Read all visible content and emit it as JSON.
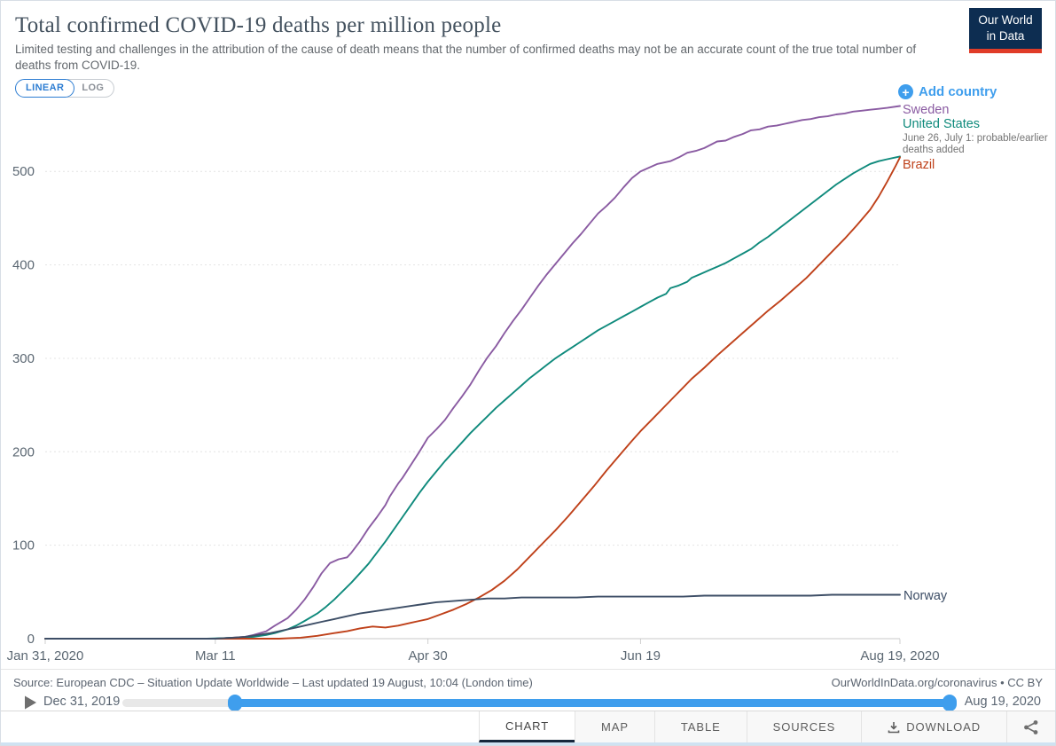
{
  "header": {
    "title": "Total confirmed COVID-19 deaths per million people",
    "subtitle": "Limited testing and challenges in the attribution of the cause of death means that the number of confirmed deaths may not be an accurate count of the true total number of deaths from COVID-19.",
    "logo_line1": "Our World",
    "logo_line2": "in Data",
    "scale_toggle": {
      "linear_label": "LINEAR",
      "log_label": "LOG",
      "active": "LINEAR"
    }
  },
  "legend": {
    "add_country_label": "Add country"
  },
  "chart_data": {
    "type": "line",
    "title": "Total confirmed COVID-19 deaths per million people",
    "x_axis": {
      "tick_days": [
        0,
        40,
        90,
        140,
        201
      ],
      "tick_labels": [
        "Jan 31, 2020",
        "Mar 11",
        "Apr 30",
        "Jun 19",
        "Aug 19, 2020"
      ],
      "start_date": "Jan 31, 2020",
      "end_date": "Aug 19, 2020"
    },
    "y_axis": {
      "ticks": [
        0,
        100,
        200,
        300,
        400,
        500
      ],
      "max_value": 570,
      "gridlines": "dashed"
    },
    "legend_position": "right",
    "series": [
      {
        "name": "Sweden",
        "color": "#8a5ba2",
        "points": [
          [
            0,
            0
          ],
          [
            30,
            0
          ],
          [
            40,
            0
          ],
          [
            44,
            1
          ],
          [
            47,
            2
          ],
          [
            49,
            4
          ],
          [
            52,
            8
          ],
          [
            54,
            14
          ],
          [
            57,
            22
          ],
          [
            59,
            31
          ],
          [
            61,
            42
          ],
          [
            63,
            55
          ],
          [
            65,
            70
          ],
          [
            67,
            81
          ],
          [
            69,
            85
          ],
          [
            71,
            87
          ],
          [
            72,
            92
          ],
          [
            74,
            104
          ],
          [
            76,
            118
          ],
          [
            78,
            130
          ],
          [
            80,
            143
          ],
          [
            81,
            152
          ],
          [
            83,
            166
          ],
          [
            84,
            172
          ],
          [
            86,
            186
          ],
          [
            88,
            200
          ],
          [
            90,
            215
          ],
          [
            92,
            224
          ],
          [
            94,
            234
          ],
          [
            96,
            247
          ],
          [
            98,
            259
          ],
          [
            100,
            272
          ],
          [
            102,
            287
          ],
          [
            104,
            301
          ],
          [
            106,
            313
          ],
          [
            108,
            327
          ],
          [
            110,
            340
          ],
          [
            112,
            352
          ],
          [
            114,
            365
          ],
          [
            116,
            378
          ],
          [
            118,
            390
          ],
          [
            120,
            401
          ],
          [
            122,
            412
          ],
          [
            124,
            423
          ],
          [
            126,
            433
          ],
          [
            128,
            444
          ],
          [
            130,
            455
          ],
          [
            132,
            463
          ],
          [
            134,
            472
          ],
          [
            136,
            483
          ],
          [
            138,
            493
          ],
          [
            140,
            500
          ],
          [
            142,
            504
          ],
          [
            144,
            508
          ],
          [
            147,
            511
          ],
          [
            149,
            515
          ],
          [
            151,
            520
          ],
          [
            153,
            522
          ],
          [
            155,
            525
          ],
          [
            158,
            532
          ],
          [
            160,
            533
          ],
          [
            162,
            537
          ],
          [
            164,
            540
          ],
          [
            166,
            544
          ],
          [
            168,
            545
          ],
          [
            170,
            548
          ],
          [
            172,
            549
          ],
          [
            174,
            551
          ],
          [
            176,
            553
          ],
          [
            178,
            555
          ],
          [
            180,
            556
          ],
          [
            182,
            558
          ],
          [
            184,
            559
          ],
          [
            186,
            561
          ],
          [
            188,
            562
          ],
          [
            190,
            564
          ],
          [
            192,
            565
          ],
          [
            194,
            566
          ],
          [
            196,
            567
          ],
          [
            198,
            568
          ],
          [
            201,
            570
          ]
        ]
      },
      {
        "name": "United States",
        "color": "#0f8a7c",
        "note": "June 26, July 1: probable/earlier deaths added",
        "points": [
          [
            0,
            0
          ],
          [
            38,
            0
          ],
          [
            45,
            1
          ],
          [
            49,
            2
          ],
          [
            52,
            4
          ],
          [
            54,
            6
          ],
          [
            57,
            10
          ],
          [
            59,
            14
          ],
          [
            61,
            19
          ],
          [
            64,
            27
          ],
          [
            66,
            34
          ],
          [
            68,
            42
          ],
          [
            70,
            51
          ],
          [
            72,
            60
          ],
          [
            74,
            70
          ],
          [
            76,
            80
          ],
          [
            78,
            92
          ],
          [
            80,
            104
          ],
          [
            82,
            117
          ],
          [
            84,
            130
          ],
          [
            86,
            143
          ],
          [
            88,
            156
          ],
          [
            90,
            168
          ],
          [
            92,
            179
          ],
          [
            94,
            190
          ],
          [
            96,
            200
          ],
          [
            98,
            210
          ],
          [
            100,
            220
          ],
          [
            102,
            229
          ],
          [
            104,
            238
          ],
          [
            106,
            247
          ],
          [
            108,
            255
          ],
          [
            110,
            263
          ],
          [
            112,
            271
          ],
          [
            114,
            279
          ],
          [
            116,
            286
          ],
          [
            118,
            293
          ],
          [
            120,
            300
          ],
          [
            122,
            306
          ],
          [
            124,
            312
          ],
          [
            126,
            318
          ],
          [
            128,
            324
          ],
          [
            130,
            330
          ],
          [
            132,
            335
          ],
          [
            134,
            340
          ],
          [
            136,
            345
          ],
          [
            138,
            350
          ],
          [
            140,
            355
          ],
          [
            142,
            360
          ],
          [
            144,
            365
          ],
          [
            146,
            369
          ],
          [
            147,
            375
          ],
          [
            149,
            378
          ],
          [
            151,
            382
          ],
          [
            152,
            386
          ],
          [
            154,
            390
          ],
          [
            156,
            394
          ],
          [
            158,
            398
          ],
          [
            160,
            402
          ],
          [
            162,
            407
          ],
          [
            164,
            412
          ],
          [
            166,
            417
          ],
          [
            168,
            424
          ],
          [
            170,
            430
          ],
          [
            172,
            437
          ],
          [
            174,
            444
          ],
          [
            176,
            451
          ],
          [
            178,
            458
          ],
          [
            180,
            465
          ],
          [
            182,
            472
          ],
          [
            184,
            479
          ],
          [
            186,
            486
          ],
          [
            188,
            492
          ],
          [
            190,
            498
          ],
          [
            192,
            503
          ],
          [
            194,
            508
          ],
          [
            196,
            511
          ],
          [
            198,
            513
          ],
          [
            200,
            515
          ],
          [
            201,
            516
          ]
        ]
      },
      {
        "name": "Brazil",
        "color": "#bf411a",
        "points": [
          [
            0,
            0
          ],
          [
            55,
            0
          ],
          [
            60,
            1
          ],
          [
            64,
            3
          ],
          [
            68,
            6
          ],
          [
            71,
            8
          ],
          [
            74,
            11
          ],
          [
            77,
            13
          ],
          [
            80,
            12
          ],
          [
            83,
            14
          ],
          [
            86,
            17
          ],
          [
            88,
            19
          ],
          [
            90,
            21
          ],
          [
            93,
            26
          ],
          [
            96,
            31
          ],
          [
            99,
            37
          ],
          [
            102,
            44
          ],
          [
            105,
            52
          ],
          [
            108,
            62
          ],
          [
            111,
            74
          ],
          [
            114,
            88
          ],
          [
            117,
            102
          ],
          [
            120,
            116
          ],
          [
            123,
            131
          ],
          [
            126,
            147
          ],
          [
            129,
            163
          ],
          [
            132,
            180
          ],
          [
            135,
            196
          ],
          [
            138,
            212
          ],
          [
            140,
            222
          ],
          [
            143,
            236
          ],
          [
            146,
            250
          ],
          [
            149,
            264
          ],
          [
            152,
            278
          ],
          [
            155,
            290
          ],
          [
            158,
            303
          ],
          [
            161,
            315
          ],
          [
            164,
            327
          ],
          [
            167,
            339
          ],
          [
            170,
            351
          ],
          [
            173,
            362
          ],
          [
            176,
            374
          ],
          [
            179,
            386
          ],
          [
            182,
            400
          ],
          [
            185,
            414
          ],
          [
            188,
            428
          ],
          [
            191,
            443
          ],
          [
            194,
            459
          ],
          [
            196,
            473
          ],
          [
            198,
            489
          ],
          [
            200,
            506
          ],
          [
            201,
            515
          ]
        ]
      },
      {
        "name": "Norway",
        "color": "#3d4e66",
        "points": [
          [
            0,
            0
          ],
          [
            40,
            0
          ],
          [
            44,
            1
          ],
          [
            47,
            2
          ],
          [
            50,
            4
          ],
          [
            53,
            6
          ],
          [
            56,
            9
          ],
          [
            59,
            12
          ],
          [
            62,
            15
          ],
          [
            65,
            18
          ],
          [
            68,
            21
          ],
          [
            71,
            24
          ],
          [
            74,
            27
          ],
          [
            77,
            29
          ],
          [
            80,
            31
          ],
          [
            83,
            33
          ],
          [
            86,
            35
          ],
          [
            89,
            37
          ],
          [
            92,
            39
          ],
          [
            95,
            40
          ],
          [
            98,
            41
          ],
          [
            101,
            42
          ],
          [
            104,
            43
          ],
          [
            108,
            43
          ],
          [
            112,
            44
          ],
          [
            116,
            44
          ],
          [
            120,
            44
          ],
          [
            125,
            44
          ],
          [
            130,
            45
          ],
          [
            135,
            45
          ],
          [
            140,
            45
          ],
          [
            145,
            45
          ],
          [
            150,
            45
          ],
          [
            155,
            46
          ],
          [
            160,
            46
          ],
          [
            165,
            46
          ],
          [
            170,
            46
          ],
          [
            175,
            46
          ],
          [
            180,
            46
          ],
          [
            185,
            47
          ],
          [
            190,
            47
          ],
          [
            195,
            47
          ],
          [
            201,
            47
          ]
        ]
      }
    ]
  },
  "footer": {
    "source_prefix": "Source: ",
    "source_link": "European CDC – Situation Update Worldwide",
    "source_suffix": " – Last updated 19 August, 10:04 (London time)",
    "rights_link": "OurWorldInData.org/coronavirus",
    "rights_suffix": " • CC BY"
  },
  "timeline": {
    "start_label": "Dec 31, 2019",
    "end_label": "Aug 19, 2020"
  },
  "tabs": {
    "items": [
      {
        "label": "CHART",
        "active": true
      },
      {
        "label": "MAP",
        "active": false
      },
      {
        "label": "TABLE",
        "active": false
      },
      {
        "label": "SOURCES",
        "active": false
      },
      {
        "label": "DOWNLOAD",
        "active": false
      }
    ]
  },
  "colors": {
    "accent_blue": "#3f9eed",
    "logo_navy": "#0d2d51",
    "logo_red": "#e03c28",
    "active_tab_underline": "#16273c"
  }
}
